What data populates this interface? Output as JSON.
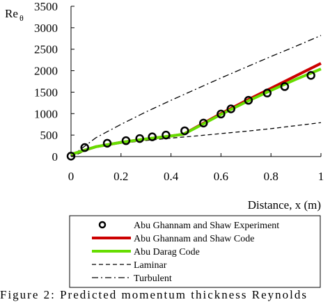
{
  "chart_data": {
    "type": "line",
    "ylabel": "Re",
    "ylabel_subscript": "θ",
    "xlabel": "Distance, x (m)",
    "xlim": [
      0,
      1
    ],
    "ylim": [
      0,
      3500
    ],
    "xticks": [
      0,
      0.2,
      0.4,
      0.6,
      0.8,
      1
    ],
    "xtick_labels": [
      "0",
      "0.2",
      "0.4",
      "0.6",
      "0.8",
      "1"
    ],
    "yticks": [
      0,
      500,
      1000,
      1500,
      2000,
      2500,
      3000,
      3500
    ],
    "ytick_labels": [
      "0",
      "500",
      "1000",
      "1500",
      "2000",
      "2500",
      "3000",
      "3500"
    ],
    "legend_position": "bottom",
    "series": [
      {
        "name": "Abu Ghannam and Shaw Experiment",
        "style": "markers",
        "color": "#000000",
        "x": [
          0,
          0.055,
          0.145,
          0.22,
          0.275,
          0.325,
          0.38,
          0.455,
          0.53,
          0.6,
          0.64,
          0.71,
          0.785,
          0.855,
          0.96
        ],
        "y": [
          10,
          210,
          310,
          370,
          420,
          460,
          500,
          600,
          780,
          990,
          1110,
          1310,
          1480,
          1630,
          1890
        ]
      },
      {
        "name": "Abu Ghannam and Shaw Code",
        "style": "line",
        "color": "#cc0000",
        "x": [
          0,
          0.1,
          0.2,
          0.3,
          0.4,
          0.45,
          0.5,
          0.6,
          0.7,
          0.8,
          0.9,
          1.0
        ],
        "y": [
          50,
          230,
          330,
          410,
          480,
          520,
          680,
          1000,
          1300,
          1590,
          1880,
          2170
        ]
      },
      {
        "name": "Abu Darag Code",
        "style": "line",
        "color": "#66dd00",
        "x": [
          0,
          0.1,
          0.2,
          0.3,
          0.4,
          0.45,
          0.5,
          0.6,
          0.7,
          0.8,
          0.9,
          1.0
        ],
        "y": [
          50,
          230,
          330,
          410,
          480,
          520,
          670,
          980,
          1270,
          1540,
          1800,
          2040
        ]
      },
      {
        "name": "Laminar",
        "style": "dashed",
        "color": "#000000",
        "x": [
          0,
          0.1,
          0.2,
          0.3,
          0.4,
          0.5,
          0.6,
          0.7,
          0.8,
          0.9,
          1.0
        ],
        "y": [
          0,
          225,
          310,
          375,
          430,
          480,
          535,
          590,
          650,
          720,
          790
        ]
      },
      {
        "name": "Turbulent",
        "style": "dashdot",
        "color": "#000000",
        "x": [
          0,
          0.1,
          0.2,
          0.3,
          0.4,
          0.5,
          0.6,
          0.7,
          0.8,
          0.9,
          1.0
        ],
        "y": [
          0,
          440,
          750,
          1040,
          1310,
          1570,
          1830,
          2080,
          2330,
          2570,
          2820
        ]
      }
    ]
  },
  "caption": {
    "text": "Figure 2: Predicted momentum thickness Reynolds"
  }
}
